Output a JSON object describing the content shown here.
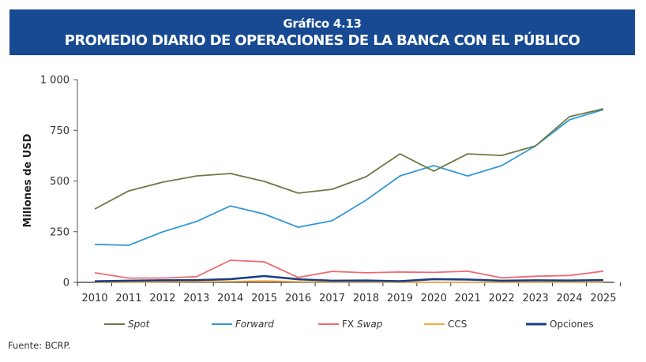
{
  "header": {
    "subtitle": "Gráfico 4.13",
    "title": "PROMEDIO DIARIO DE OPERACIONES DE LA BANCA CON EL PÚBLICO",
    "background_color": "#174a93"
  },
  "source": "Fuente: BCRP.",
  "chart_data": {
    "type": "line",
    "title": "PROMEDIO DIARIO DE OPERACIONES DE LA BANCA CON EL PÚBLICO",
    "subtitle": "Gráfico 4.13",
    "xlabel": "",
    "ylabel": "Millones de USD",
    "ylim": [
      0,
      1000
    ],
    "yticks": [
      0,
      250,
      500,
      750,
      1000
    ],
    "ytick_labels": [
      "0",
      "250",
      "500",
      "750",
      "1 000"
    ],
    "grid": false,
    "legend_position": "bottom",
    "x": [
      "2010",
      "2011",
      "2012",
      "2013",
      "2014",
      "2015",
      "2016",
      "2017",
      "2018",
      "2019",
      "2020",
      "2021",
      "2022",
      "2023",
      "2024",
      "2025"
    ],
    "series": [
      {
        "name": "Spot",
        "italic": true,
        "color": "#6b7a45",
        "values": [
          362,
          451,
          494,
          525,
          537,
          498,
          440,
          459,
          521,
          634,
          549,
          634,
          626,
          673,
          817,
          856
        ]
      },
      {
        "name": "Forward",
        "italic": true,
        "color": "#3399d6",
        "values": [
          187,
          183,
          249,
          300,
          377,
          337,
          272,
          304,
          405,
          525,
          576,
          525,
          576,
          673,
          802,
          852
        ]
      },
      {
        "name": "FX Swap",
        "italic_part": "Swap",
        "color": "#ef6b6f",
        "values": [
          47,
          21,
          21,
          28,
          109,
          101,
          24,
          54,
          47,
          51,
          49,
          55,
          22,
          30,
          34,
          55
        ]
      },
      {
        "name": "CCS",
        "italic": false,
        "color": "#f5a83a",
        "values": [
          0,
          1,
          2,
          3,
          4,
          7,
          3,
          2,
          2,
          1,
          0,
          0,
          0,
          1,
          1,
          2
        ]
      },
      {
        "name": "Opciones",
        "italic": false,
        "color": "#173f86",
        "values": [
          5,
          8,
          10,
          11,
          16,
          31,
          15,
          8,
          9,
          6,
          16,
          14,
          8,
          10,
          9,
          11
        ]
      }
    ]
  }
}
